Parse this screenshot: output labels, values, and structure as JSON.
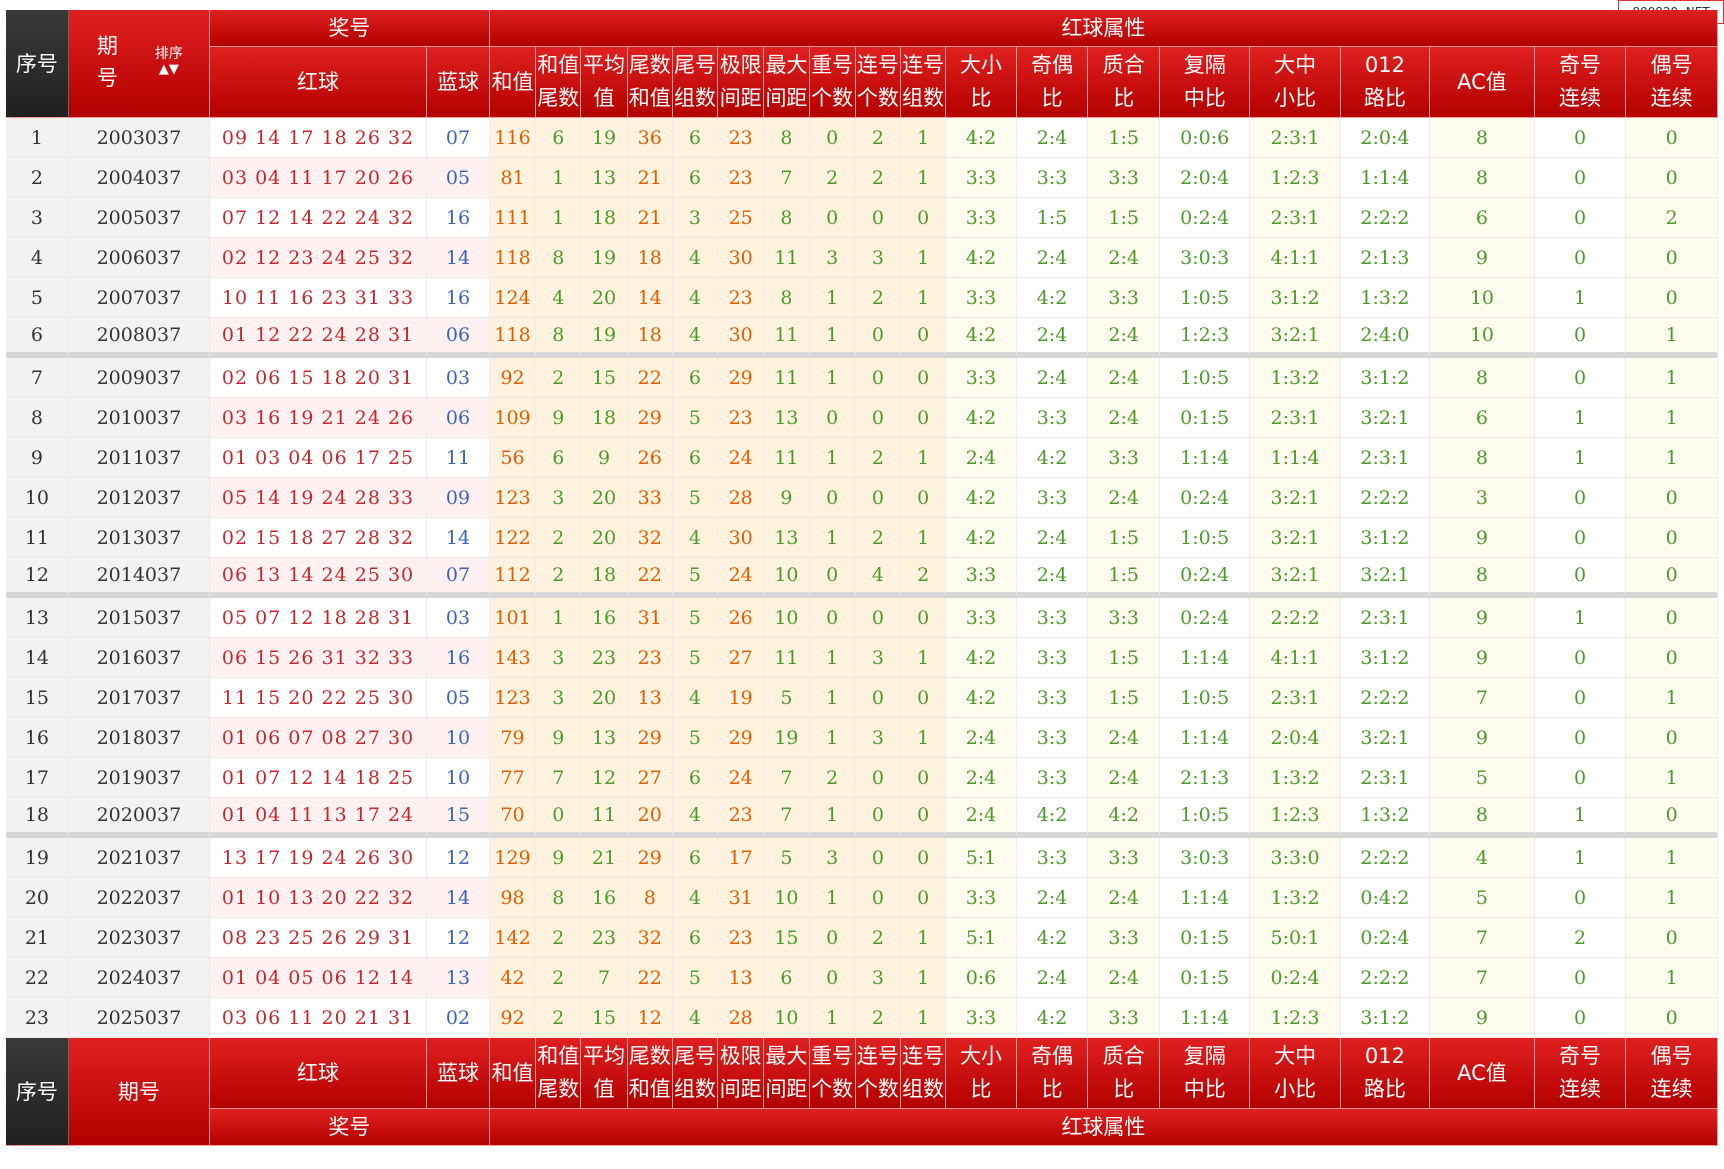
{
  "watermark": "800820. NET",
  "header": {
    "seq": "序号",
    "issue_line1": "期",
    "issue_line2": "号",
    "issue_footer": "期号",
    "sort_label": "排序",
    "prize": "奖号",
    "red_ball": "红球",
    "blue_ball": "蓝球",
    "red_attr": "红球属性",
    "cols": [
      {
        "l1": "和值",
        "l2": ""
      },
      {
        "l1": "和值",
        "l2": "尾数"
      },
      {
        "l1": "平均",
        "l2": "值"
      },
      {
        "l1": "尾数",
        "l2": "和值"
      },
      {
        "l1": "尾号",
        "l2": "组数"
      },
      {
        "l1": "极限",
        "l2": "间距"
      },
      {
        "l1": "最大",
        "l2": "间距"
      },
      {
        "l1": "重号",
        "l2": "个数"
      },
      {
        "l1": "连号",
        "l2": "个数"
      },
      {
        "l1": "连号",
        "l2": "组数"
      },
      {
        "l1": "大小",
        "l2": "比"
      },
      {
        "l1": "奇偶",
        "l2": "比"
      },
      {
        "l1": "质合",
        "l2": "比"
      },
      {
        "l1": "复隔",
        "l2": "中比"
      },
      {
        "l1": "大中",
        "l2": "小比"
      },
      {
        "l1": "012",
        "l2": "路比"
      },
      {
        "l1": "AC值",
        "l2": ""
      },
      {
        "l1": "奇号",
        "l2": "连续"
      },
      {
        "l1": "偶号",
        "l2": "连续"
      }
    ]
  },
  "rows": [
    {
      "seq": "1",
      "issue": "2003037",
      "red": "09 14 17 18 26 32",
      "blue": "07",
      "v": [
        "116",
        "6",
        "19",
        "36",
        "6",
        "23",
        "8",
        "0",
        "2",
        "1",
        "4:2",
        "2:4",
        "1:5",
        "0:0:6",
        "2:3:1",
        "2:0:4",
        "8",
        "0",
        "0"
      ]
    },
    {
      "seq": "2",
      "issue": "2004037",
      "red": "03 04 11 17 20 26",
      "blue": "05",
      "v": [
        "81",
        "1",
        "13",
        "21",
        "6",
        "23",
        "7",
        "2",
        "2",
        "1",
        "3:3",
        "3:3",
        "3:3",
        "2:0:4",
        "1:2:3",
        "1:1:4",
        "8",
        "0",
        "0"
      ]
    },
    {
      "seq": "3",
      "issue": "2005037",
      "red": "07 12 14 22 24 32",
      "blue": "16",
      "v": [
        "111",
        "1",
        "18",
        "21",
        "3",
        "25",
        "8",
        "0",
        "0",
        "0",
        "3:3",
        "1:5",
        "1:5",
        "0:2:4",
        "2:3:1",
        "2:2:2",
        "6",
        "0",
        "2"
      ]
    },
    {
      "seq": "4",
      "issue": "2006037",
      "red": "02 12 23 24 25 32",
      "blue": "14",
      "v": [
        "118",
        "8",
        "19",
        "18",
        "4",
        "30",
        "11",
        "3",
        "3",
        "1",
        "4:2",
        "2:4",
        "2:4",
        "3:0:3",
        "4:1:1",
        "2:1:3",
        "9",
        "0",
        "0"
      ]
    },
    {
      "seq": "5",
      "issue": "2007037",
      "red": "10 11 16 23 31 33",
      "blue": "16",
      "v": [
        "124",
        "4",
        "20",
        "14",
        "4",
        "23",
        "8",
        "1",
        "2",
        "1",
        "3:3",
        "4:2",
        "3:3",
        "1:0:5",
        "3:1:2",
        "1:3:2",
        "10",
        "1",
        "0"
      ]
    },
    {
      "seq": "6",
      "issue": "2008037",
      "red": "01 12 22 24 28 31",
      "blue": "06",
      "v": [
        "118",
        "8",
        "19",
        "18",
        "4",
        "30",
        "11",
        "1",
        "0",
        "0",
        "4:2",
        "2:4",
        "2:4",
        "1:2:3",
        "3:2:1",
        "2:4:0",
        "10",
        "0",
        "1"
      ]
    },
    {
      "seq": "7",
      "issue": "2009037",
      "red": "02 06 15 18 20 31",
      "blue": "03",
      "v": [
        "92",
        "2",
        "15",
        "22",
        "6",
        "29",
        "11",
        "1",
        "0",
        "0",
        "3:3",
        "2:4",
        "2:4",
        "1:0:5",
        "1:3:2",
        "3:1:2",
        "8",
        "0",
        "1"
      ]
    },
    {
      "seq": "8",
      "issue": "2010037",
      "red": "03 16 19 21 24 26",
      "blue": "06",
      "v": [
        "109",
        "9",
        "18",
        "29",
        "5",
        "23",
        "13",
        "0",
        "0",
        "0",
        "4:2",
        "3:3",
        "2:4",
        "0:1:5",
        "2:3:1",
        "3:2:1",
        "6",
        "1",
        "1"
      ]
    },
    {
      "seq": "9",
      "issue": "2011037",
      "red": "01 03 04 06 17 25",
      "blue": "11",
      "v": [
        "56",
        "6",
        "9",
        "26",
        "6",
        "24",
        "11",
        "1",
        "2",
        "1",
        "2:4",
        "4:2",
        "3:3",
        "1:1:4",
        "1:1:4",
        "2:3:1",
        "8",
        "1",
        "1"
      ]
    },
    {
      "seq": "10",
      "issue": "2012037",
      "red": "05 14 19 24 28 33",
      "blue": "09",
      "v": [
        "123",
        "3",
        "20",
        "33",
        "5",
        "28",
        "9",
        "0",
        "0",
        "0",
        "4:2",
        "3:3",
        "2:4",
        "0:2:4",
        "3:2:1",
        "2:2:2",
        "3",
        "0",
        "0"
      ]
    },
    {
      "seq": "11",
      "issue": "2013037",
      "red": "02 15 18 27 28 32",
      "blue": "14",
      "v": [
        "122",
        "2",
        "20",
        "32",
        "4",
        "30",
        "13",
        "1",
        "2",
        "1",
        "4:2",
        "2:4",
        "1:5",
        "1:0:5",
        "3:2:1",
        "3:1:2",
        "9",
        "0",
        "0"
      ]
    },
    {
      "seq": "12",
      "issue": "2014037",
      "red": "06 13 14 24 25 30",
      "blue": "07",
      "v": [
        "112",
        "2",
        "18",
        "22",
        "5",
        "24",
        "10",
        "0",
        "4",
        "2",
        "3:3",
        "2:4",
        "1:5",
        "0:2:4",
        "3:2:1",
        "3:2:1",
        "8",
        "0",
        "0"
      ]
    },
    {
      "seq": "13",
      "issue": "2015037",
      "red": "05 07 12 18 28 31",
      "blue": "03",
      "v": [
        "101",
        "1",
        "16",
        "31",
        "5",
        "26",
        "10",
        "0",
        "0",
        "0",
        "3:3",
        "3:3",
        "3:3",
        "0:2:4",
        "2:2:2",
        "2:3:1",
        "9",
        "1",
        "0"
      ]
    },
    {
      "seq": "14",
      "issue": "2016037",
      "red": "06 15 26 31 32 33",
      "blue": "16",
      "v": [
        "143",
        "3",
        "23",
        "23",
        "5",
        "27",
        "11",
        "1",
        "3",
        "1",
        "4:2",
        "3:3",
        "1:5",
        "1:1:4",
        "4:1:1",
        "3:1:2",
        "9",
        "0",
        "0"
      ]
    },
    {
      "seq": "15",
      "issue": "2017037",
      "red": "11 15 20 22 25 30",
      "blue": "05",
      "v": [
        "123",
        "3",
        "20",
        "13",
        "4",
        "19",
        "5",
        "1",
        "0",
        "0",
        "4:2",
        "3:3",
        "1:5",
        "1:0:5",
        "2:3:1",
        "2:2:2",
        "7",
        "0",
        "1"
      ]
    },
    {
      "seq": "16",
      "issue": "2018037",
      "red": "01 06 07 08 27 30",
      "blue": "10",
      "v": [
        "79",
        "9",
        "13",
        "29",
        "5",
        "29",
        "19",
        "1",
        "3",
        "1",
        "2:4",
        "3:3",
        "2:4",
        "1:1:4",
        "2:0:4",
        "3:2:1",
        "9",
        "0",
        "0"
      ]
    },
    {
      "seq": "17",
      "issue": "2019037",
      "red": "01 07 12 14 18 25",
      "blue": "10",
      "v": [
        "77",
        "7",
        "12",
        "27",
        "6",
        "24",
        "7",
        "2",
        "0",
        "0",
        "2:4",
        "3:3",
        "2:4",
        "2:1:3",
        "1:3:2",
        "2:3:1",
        "5",
        "0",
        "1"
      ]
    },
    {
      "seq": "18",
      "issue": "2020037",
      "red": "01 04 11 13 17 24",
      "blue": "15",
      "v": [
        "70",
        "0",
        "11",
        "20",
        "4",
        "23",
        "7",
        "1",
        "0",
        "0",
        "2:4",
        "4:2",
        "4:2",
        "1:0:5",
        "1:2:3",
        "1:3:2",
        "8",
        "1",
        "0"
      ]
    },
    {
      "seq": "19",
      "issue": "2021037",
      "red": "13 17 19 24 26 30",
      "blue": "12",
      "v": [
        "129",
        "9",
        "21",
        "29",
        "6",
        "17",
        "5",
        "3",
        "0",
        "0",
        "5:1",
        "3:3",
        "3:3",
        "3:0:3",
        "3:3:0",
        "2:2:2",
        "4",
        "1",
        "1"
      ]
    },
    {
      "seq": "20",
      "issue": "2022037",
      "red": "01 10 13 20 22 32",
      "blue": "14",
      "v": [
        "98",
        "8",
        "16",
        "8",
        "4",
        "31",
        "10",
        "1",
        "0",
        "0",
        "3:3",
        "2:4",
        "2:4",
        "1:1:4",
        "1:3:2",
        "0:4:2",
        "5",
        "0",
        "1"
      ]
    },
    {
      "seq": "21",
      "issue": "2023037",
      "red": "08 23 25 26 29 31",
      "blue": "12",
      "v": [
        "142",
        "2",
        "23",
        "32",
        "6",
        "23",
        "15",
        "0",
        "2",
        "1",
        "5:1",
        "4:2",
        "3:3",
        "0:1:5",
        "5:0:1",
        "0:2:4",
        "7",
        "2",
        "0"
      ]
    },
    {
      "seq": "22",
      "issue": "2024037",
      "red": "01 04 05 06 12 14",
      "blue": "13",
      "v": [
        "42",
        "2",
        "7",
        "22",
        "5",
        "13",
        "6",
        "0",
        "3",
        "1",
        "0:6",
        "2:4",
        "2:4",
        "0:1:5",
        "0:2:4",
        "2:2:2",
        "7",
        "0",
        "1"
      ]
    },
    {
      "seq": "23",
      "issue": "2025037",
      "red": "03 06 11 20 21 31",
      "blue": "02",
      "v": [
        "92",
        "2",
        "15",
        "12",
        "4",
        "28",
        "10",
        "1",
        "2",
        "1",
        "3:3",
        "4:2",
        "3:3",
        "1:1:4",
        "1:2:3",
        "3:1:2",
        "9",
        "0",
        "0"
      ]
    }
  ]
}
